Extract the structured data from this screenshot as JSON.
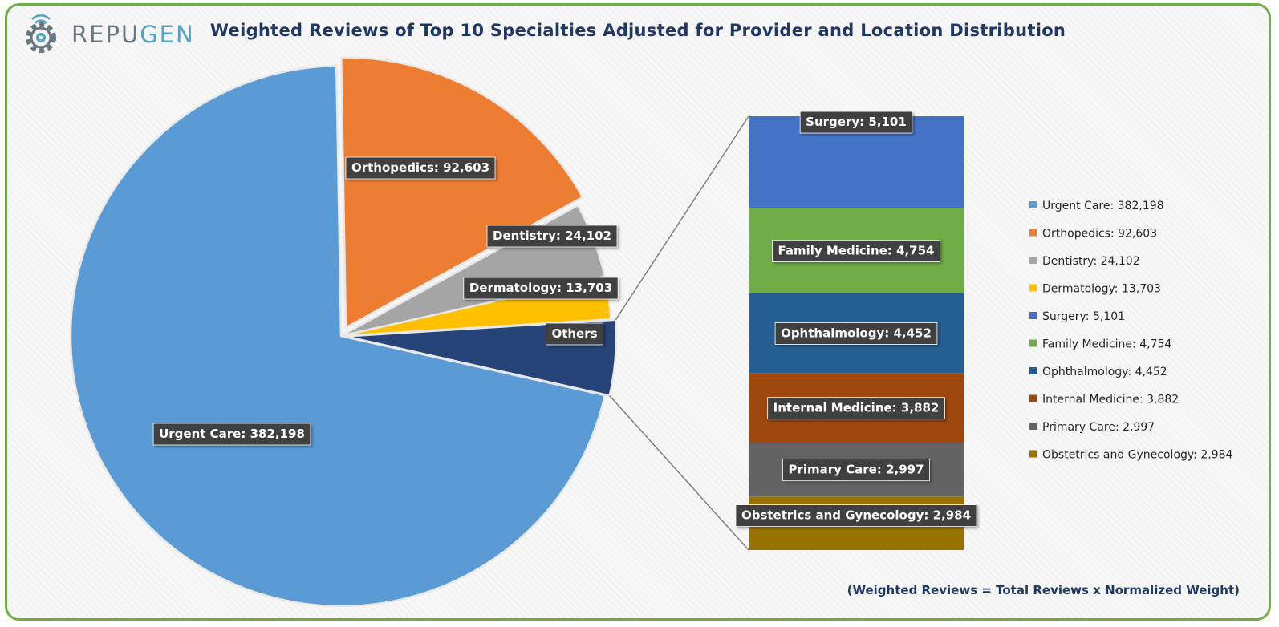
{
  "brand": {
    "name_pre": "REPU",
    "name_post": "GEN"
  },
  "title": "Weighted Reviews of Top 10 Specialties Adjusted for Provider and Location Distribution",
  "footnote": "(Weighted Reviews = Total Reviews x Normalized Weight)",
  "chart_data": {
    "type": "bar-of-pie",
    "title": "Weighted Reviews of Top 10 Specialties Adjusted for Provider and Location Distribution",
    "pie": {
      "slices": [
        {
          "name": "Urgent Care",
          "value": 382198,
          "label": "Urgent Care: 382,198",
          "color": "#5b9bd5"
        },
        {
          "name": "Orthopedics",
          "value": 92603,
          "label": "Orthopedics: 92,603",
          "color": "#ed7d31"
        },
        {
          "name": "Dentistry",
          "value": 24102,
          "label": "Dentistry: 24,102",
          "color": "#a5a5a5"
        },
        {
          "name": "Dermatology",
          "value": 13703,
          "label": "Dermatology: 13,703",
          "color": "#ffc000"
        },
        {
          "name": "Others",
          "value": 24170,
          "label": "Others",
          "color": "#264478"
        }
      ]
    },
    "breakdown": {
      "parent": "Others",
      "items": [
        {
          "name": "Surgery",
          "value": 5101,
          "label": "Surgery: 5,101",
          "color": "#4472c4"
        },
        {
          "name": "Family Medicine",
          "value": 4754,
          "label": "Family Medicine: 4,754",
          "color": "#70ad47"
        },
        {
          "name": "Ophthalmology",
          "value": 4452,
          "label": "Ophthalmology: 4,452",
          "color": "#255e91"
        },
        {
          "name": "Internal Medicine",
          "value": 3882,
          "label": "Internal Medicine: 3,882",
          "color": "#9e480e"
        },
        {
          "name": "Primary Care",
          "value": 2997,
          "label": "Primary Care: 2,997",
          "color": "#636363"
        },
        {
          "name": "Obstetrics and Gynecology",
          "value": 2984,
          "label": "Obstetrics and Gynecology: 2,984",
          "color": "#997300"
        }
      ]
    },
    "legend": {
      "position": "right",
      "entries": [
        {
          "label": "Urgent Care: 382,198",
          "color": "#5b9bd5"
        },
        {
          "label": "Orthopedics: 92,603",
          "color": "#ed7d31"
        },
        {
          "label": "Dentistry: 24,102",
          "color": "#a5a5a5"
        },
        {
          "label": "Dermatology: 13,703",
          "color": "#ffc000"
        },
        {
          "label": "Surgery: 5,101",
          "color": "#4472c4"
        },
        {
          "label": "Family Medicine: 4,754",
          "color": "#70ad47"
        },
        {
          "label": "Ophthalmology: 4,452",
          "color": "#255e91"
        },
        {
          "label": "Internal Medicine: 3,882",
          "color": "#9e480e"
        },
        {
          "label": "Primary Care: 2,997",
          "color": "#636363"
        },
        {
          "label": "Obstetrics and Gynecology: 2,984",
          "color": "#997300"
        }
      ]
    }
  }
}
